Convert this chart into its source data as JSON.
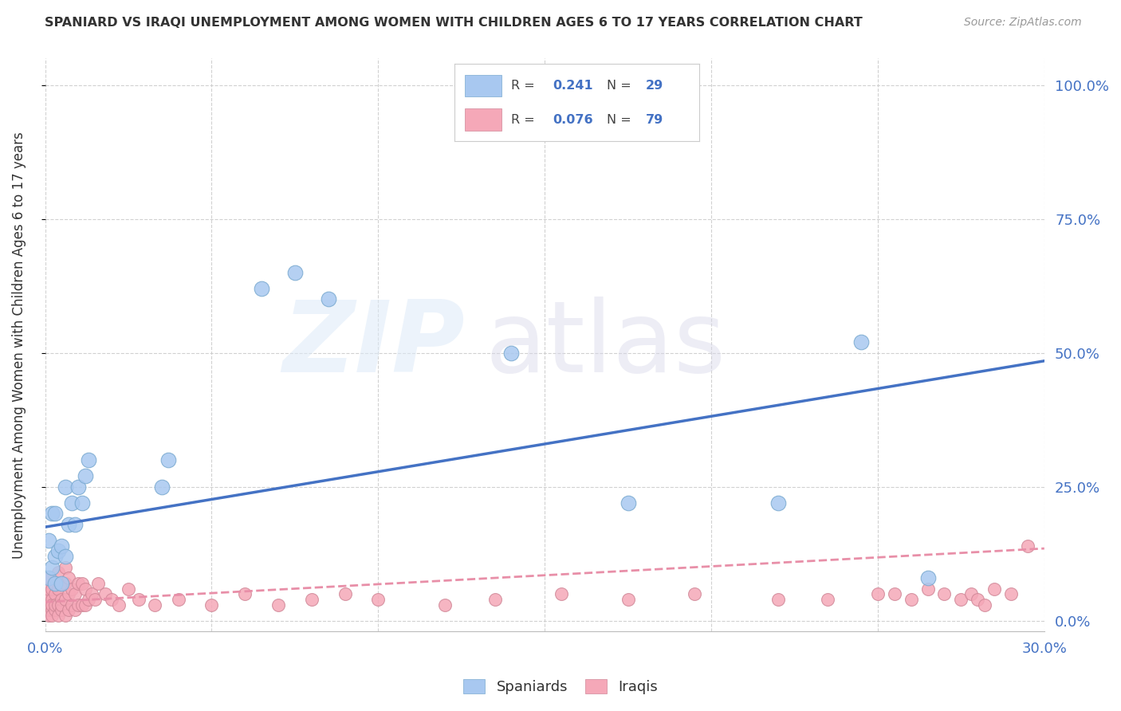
{
  "title": "SPANIARD VS IRAQI UNEMPLOYMENT AMONG WOMEN WITH CHILDREN AGES 6 TO 17 YEARS CORRELATION CHART",
  "source": "Source: ZipAtlas.com",
  "ylabel": "Unemployment Among Women with Children Ages 6 to 17 years",
  "spaniard_label": "Spaniards",
  "iraqi_label": "Iraqis",
  "legend_r1": "R = ",
  "legend_v1": "0.241",
  "legend_n1": "N = ",
  "legend_nv1": "29",
  "legend_r2": "R = ",
  "legend_v2": "0.076",
  "legend_n2": "N = ",
  "legend_nv2": "79",
  "spaniard_color": "#a8c8f0",
  "spaniard_edge": "#7aaad0",
  "iraqi_color": "#f5a8b8",
  "iraqi_edge": "#d08898",
  "spaniard_line_color": "#4472c4",
  "iraqi_line_color": "#e88fa8",
  "blue_text_color": "#4472c4",
  "dark_text_color": "#333333",
  "source_color": "#999999",
  "xtick_color": "#4472c4",
  "ytick_color": "#4472c4",
  "grid_color": "#cccccc",
  "background_color": "#ffffff",
  "legend_edge_color": "#cccccc",
  "spaniard_x": [
    0.001,
    0.001,
    0.002,
    0.002,
    0.003,
    0.003,
    0.003,
    0.004,
    0.005,
    0.005,
    0.006,
    0.006,
    0.007,
    0.008,
    0.009,
    0.01,
    0.011,
    0.012,
    0.013,
    0.035,
    0.037,
    0.065,
    0.075,
    0.085,
    0.14,
    0.175,
    0.22,
    0.245,
    0.265
  ],
  "spaniard_y": [
    0.08,
    0.15,
    0.1,
    0.2,
    0.07,
    0.12,
    0.2,
    0.13,
    0.07,
    0.14,
    0.12,
    0.25,
    0.18,
    0.22,
    0.18,
    0.25,
    0.22,
    0.27,
    0.3,
    0.25,
    0.3,
    0.62,
    0.65,
    0.6,
    0.5,
    0.22,
    0.22,
    0.52,
    0.08
  ],
  "iraqi_x": [
    0.0,
    0.0,
    0.0,
    0.001,
    0.001,
    0.001,
    0.001,
    0.001,
    0.001,
    0.002,
    0.002,
    0.002,
    0.002,
    0.002,
    0.003,
    0.003,
    0.003,
    0.003,
    0.004,
    0.004,
    0.004,
    0.004,
    0.005,
    0.005,
    0.005,
    0.005,
    0.006,
    0.006,
    0.006,
    0.006,
    0.007,
    0.007,
    0.007,
    0.008,
    0.008,
    0.009,
    0.009,
    0.01,
    0.01,
    0.011,
    0.011,
    0.012,
    0.012,
    0.013,
    0.014,
    0.015,
    0.016,
    0.018,
    0.02,
    0.022,
    0.025,
    0.028,
    0.033,
    0.04,
    0.05,
    0.06,
    0.07,
    0.08,
    0.09,
    0.1,
    0.12,
    0.135,
    0.155,
    0.175,
    0.195,
    0.22,
    0.235,
    0.25,
    0.255,
    0.26,
    0.265,
    0.27,
    0.275,
    0.278,
    0.28,
    0.282,
    0.285,
    0.29,
    0.295
  ],
  "iraqi_y": [
    0.03,
    0.05,
    0.02,
    0.01,
    0.02,
    0.04,
    0.06,
    0.08,
    0.03,
    0.02,
    0.04,
    0.06,
    0.01,
    0.03,
    0.02,
    0.05,
    0.07,
    0.03,
    0.01,
    0.03,
    0.06,
    0.09,
    0.02,
    0.04,
    0.07,
    0.03,
    0.01,
    0.04,
    0.07,
    0.1,
    0.02,
    0.05,
    0.08,
    0.03,
    0.06,
    0.02,
    0.05,
    0.03,
    0.07,
    0.03,
    0.07,
    0.03,
    0.06,
    0.04,
    0.05,
    0.04,
    0.07,
    0.05,
    0.04,
    0.03,
    0.06,
    0.04,
    0.03,
    0.04,
    0.03,
    0.05,
    0.03,
    0.04,
    0.05,
    0.04,
    0.03,
    0.04,
    0.05,
    0.04,
    0.05,
    0.04,
    0.04,
    0.05,
    0.05,
    0.04,
    0.06,
    0.05,
    0.04,
    0.05,
    0.04,
    0.03,
    0.06,
    0.05,
    0.14
  ],
  "xmin": 0.0,
  "xmax": 0.3,
  "ymin": -0.02,
  "ymax": 1.05,
  "yticks": [
    0.0,
    0.25,
    0.5,
    0.75,
    1.0
  ],
  "ytick_labels": [
    "0.0%",
    "25.0%",
    "50.0%",
    "75.0%",
    "100.0%"
  ],
  "xtick_positions": [
    0.0,
    0.05,
    0.1,
    0.15,
    0.2,
    0.25,
    0.3
  ],
  "blue_line_y0": 0.175,
  "blue_line_y1": 0.485,
  "pink_line_y0": 0.035,
  "pink_line_y1": 0.135
}
